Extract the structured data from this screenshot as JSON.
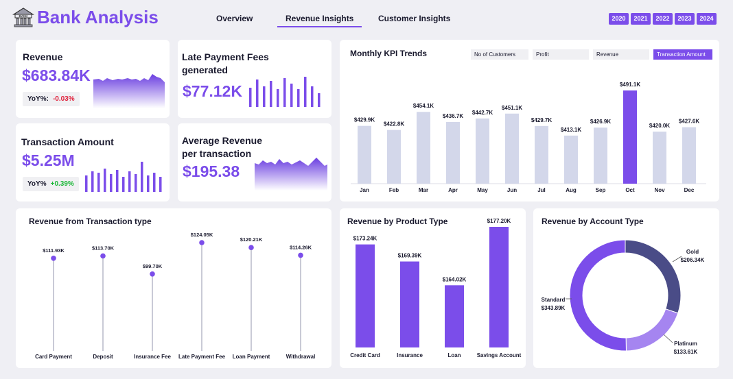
{
  "header": {
    "title": "Bank Analysis",
    "logo_text": "BANK",
    "tabs": [
      "Overview",
      "Revenue Insights",
      "Customer Insights"
    ],
    "active_tab": "Revenue Insights",
    "years": [
      "2020",
      "2021",
      "2022",
      "2023",
      "2024"
    ]
  },
  "kpis": {
    "revenue": {
      "label": "Revenue",
      "value": "$683.84K",
      "yoy_label": "YoY%:",
      "yoy_value": "-0.03%"
    },
    "late_fees": {
      "label_line1": "Late Payment Fees",
      "label_line2": "generated",
      "value": "$77.12K"
    },
    "transaction_amount": {
      "label": "Transaction Amount",
      "value": "$5.25M",
      "yoy_label": "YoY%",
      "yoy_value": "+0.39%"
    },
    "avg_revenue": {
      "label_line1": "Average Revenue",
      "label_line2": "per transaction",
      "value": "$195.38"
    }
  },
  "monthly_kpi": {
    "title": "Monthly KPI Trends",
    "tabs": [
      "No of Customers",
      "Profit",
      "Revenue",
      "Transaction Amount"
    ],
    "active_tab": "Transaction Amount"
  },
  "transaction_type": {
    "title": "Revenue from Transaction type"
  },
  "product_type": {
    "title": "Revenue by Product Type"
  },
  "account_type": {
    "title": "Revenue by Account Type"
  },
  "colors": {
    "accent": "#7b4dea",
    "bar_light": "#d3d7ea",
    "navy": "#4a4c87",
    "light_purple": "#a585f0"
  },
  "chart_data": [
    {
      "type": "bar",
      "title": "Monthly KPI Trends",
      "categories": [
        "Jan",
        "Feb",
        "Mar",
        "Apr",
        "May",
        "Jun",
        "Jul",
        "Aug",
        "Sep",
        "Oct",
        "Nov",
        "Dec"
      ],
      "values": [
        429.9,
        422.8,
        454.1,
        436.7,
        442.7,
        451.1,
        429.7,
        413.1,
        426.9,
        491.1,
        420.0,
        427.6
      ],
      "labels": [
        "$429.9K",
        "$422.8K",
        "$454.1K",
        "$436.7K",
        "$442.7K",
        "$451.1K",
        "$429.7K",
        "$413.1K",
        "$426.9K",
        "$491.1K",
        "$420.0K",
        "$427.6K"
      ],
      "highlight": "Oct"
    },
    {
      "type": "lollipop",
      "title": "Revenue from Transaction type",
      "categories": [
        "Card Payment",
        "Deposit",
        "Insurance Fee",
        "Late Payment Fee",
        "Loan Payment",
        "Withdrawal"
      ],
      "values": [
        111.93,
        113.7,
        99.7,
        124.05,
        120.21,
        114.26
      ],
      "labels": [
        "$111.93K",
        "$113.70K",
        "$99.70K",
        "$124.05K",
        "$120.21K",
        "$114.26K"
      ]
    },
    {
      "type": "bar",
      "title": "Revenue by Product Type",
      "categories": [
        "Credit Card",
        "Insurance",
        "Loan",
        "Savings Account"
      ],
      "values": [
        173.24,
        169.39,
        164.02,
        177.2
      ],
      "labels": [
        "$173.24K",
        "$169.39K",
        "$164.02K",
        "$177.20K"
      ]
    },
    {
      "type": "pie",
      "title": "Revenue by Account Type",
      "categories": [
        "Gold",
        "Standard",
        "Platinum"
      ],
      "values": [
        206.34,
        343.89,
        133.61
      ],
      "labels": [
        "$206.34K",
        "$343.89K",
        "$133.61K"
      ]
    }
  ]
}
